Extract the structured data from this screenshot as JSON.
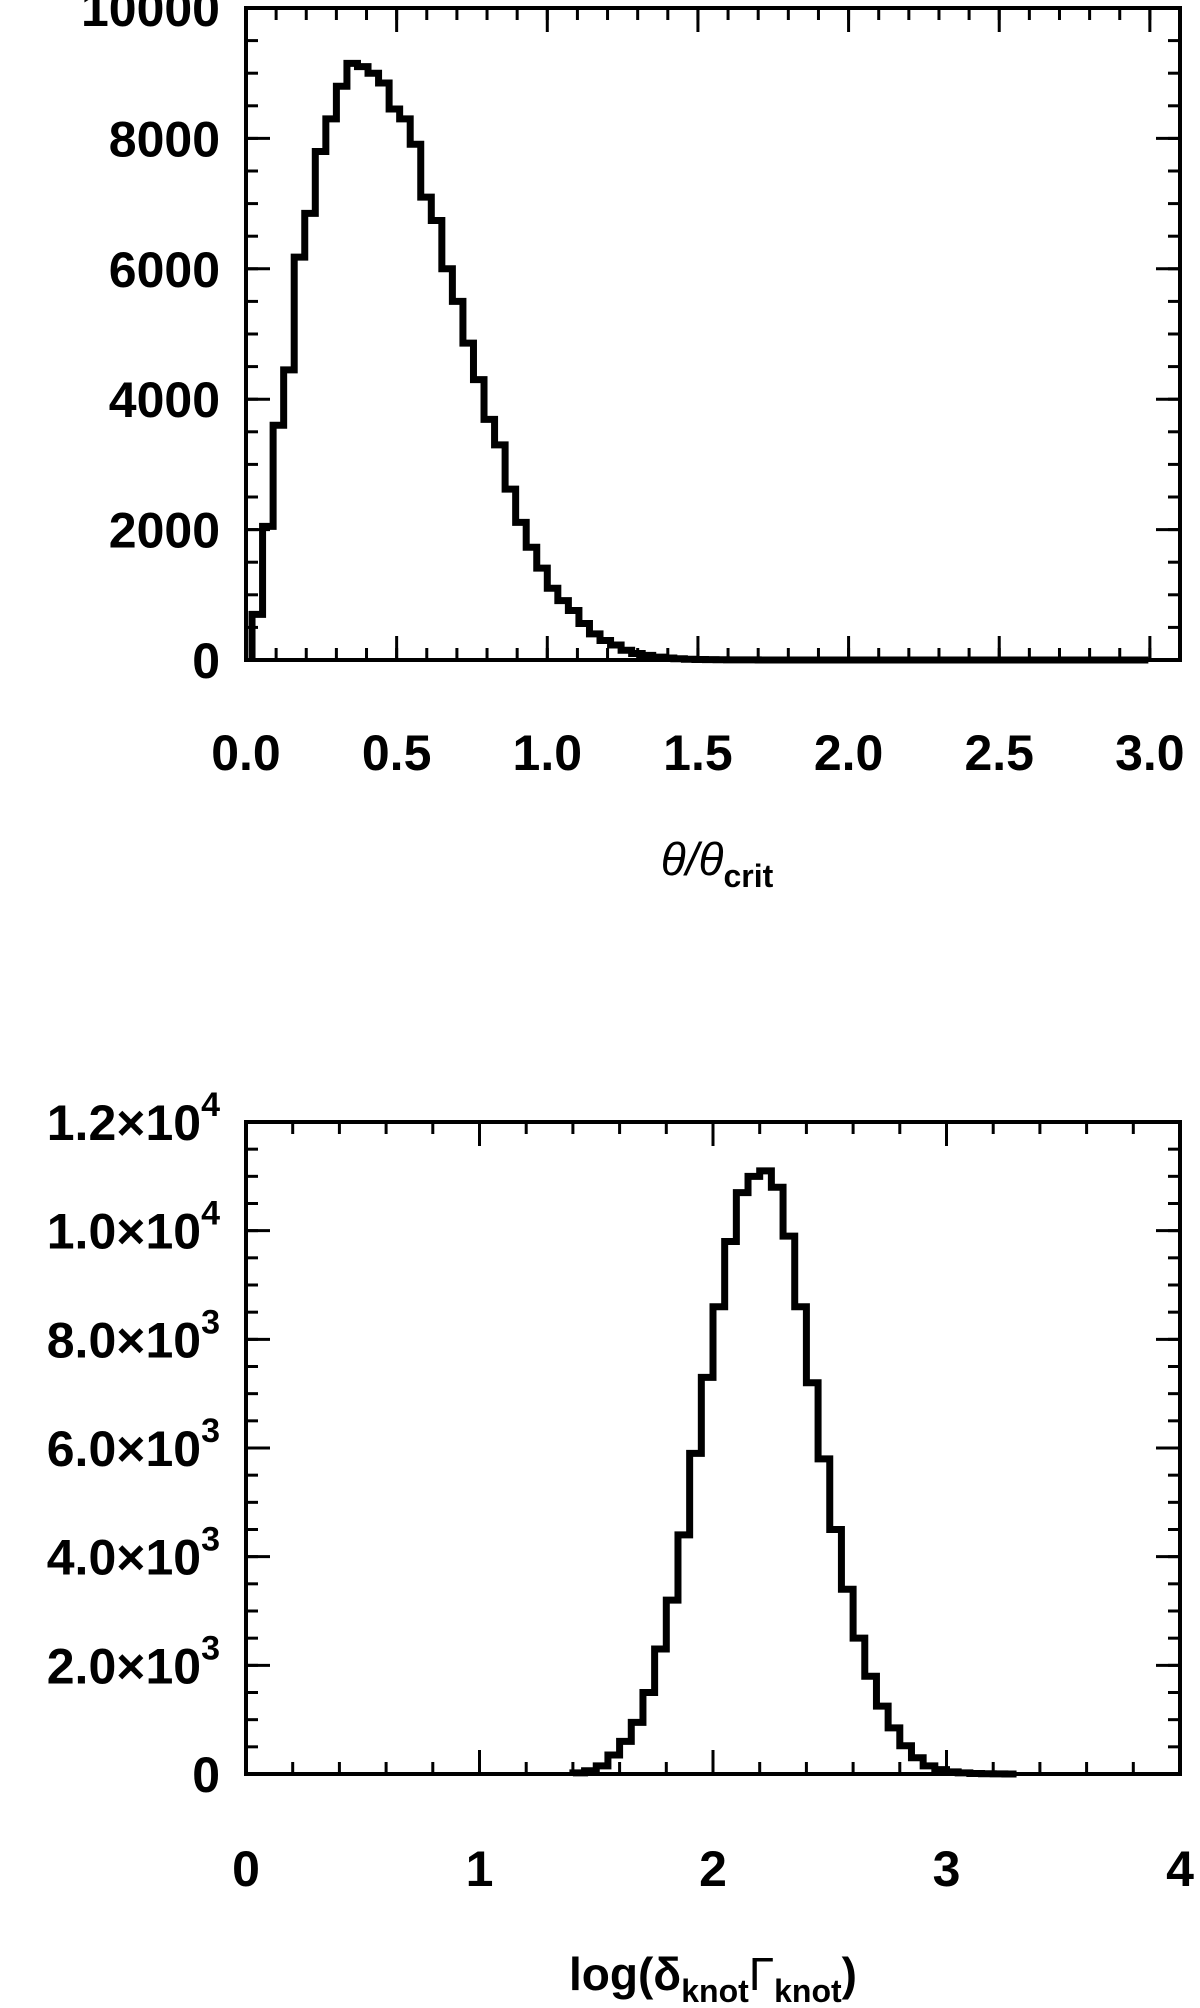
{
  "chart_data": [
    {
      "type": "histogram",
      "xlabel_main": "θ/θ",
      "xlabel_sub": "crit",
      "xlim": [
        0.0,
        3.1
      ],
      "ylim": [
        0,
        10000
      ],
      "xticks": [
        "0.0",
        "0.5",
        "1.0",
        "1.5",
        "2.0",
        "2.5",
        "3.0"
      ],
      "yticks": [
        "0",
        "2000",
        "4000",
        "6000",
        "8000",
        "10000"
      ],
      "bin_width": 0.035,
      "bin_start": 0.02,
      "values": [
        700,
        2050,
        3600,
        4450,
        6180,
        6850,
        7800,
        8300,
        8800,
        9150,
        9100,
        9000,
        8850,
        8450,
        8300,
        7910,
        7100,
        6740,
        6000,
        5500,
        4860,
        4300,
        3690,
        3300,
        2620,
        2110,
        1730,
        1410,
        1100,
        910,
        760,
        560,
        400,
        300,
        230,
        150,
        100,
        70,
        45,
        30,
        20,
        12,
        8,
        5,
        3,
        2,
        1,
        1,
        0,
        0,
        0,
        0,
        0,
        0,
        0,
        0,
        0,
        0,
        0,
        0,
        0,
        0,
        0,
        0,
        0,
        0,
        0,
        0,
        0,
        0,
        0,
        0,
        0,
        0,
        0,
        0,
        0,
        0,
        0,
        0,
        0,
        0,
        0,
        0,
        0
      ]
    },
    {
      "type": "histogram",
      "xlabel_main": "log(δ",
      "xlabel_sub1": "knot",
      "xlabel_mid": "Γ",
      "xlabel_sub2": "knot",
      "xlabel_end": ")",
      "xlim": [
        0,
        4
      ],
      "ylim": [
        0,
        12000
      ],
      "xticks": [
        "0",
        "1",
        "2",
        "3",
        "4"
      ],
      "yticks": [
        {
          "mant": "0",
          "exp": ""
        },
        {
          "mant": "2.0×10",
          "exp": "3"
        },
        {
          "mant": "4.0×10",
          "exp": "3"
        },
        {
          "mant": "6.0×10",
          "exp": "3"
        },
        {
          "mant": "8.0×10",
          "exp": "3"
        },
        {
          "mant": "1.0×10",
          "exp": "4"
        },
        {
          "mant": "1.2×10",
          "exp": "4"
        }
      ],
      "bin_width": 0.05,
      "bin_start": 1.4,
      "values": [
        20,
        60,
        150,
        350,
        600,
        950,
        1500,
        2300,
        3200,
        4400,
        5900,
        7300,
        8600,
        9800,
        10700,
        11000,
        11100,
        10800,
        9900,
        8600,
        7200,
        5800,
        4500,
        3400,
        2500,
        1800,
        1250,
        850,
        520,
        300,
        150,
        80,
        40,
        20,
        10,
        5,
        2,
        0
      ]
    }
  ]
}
